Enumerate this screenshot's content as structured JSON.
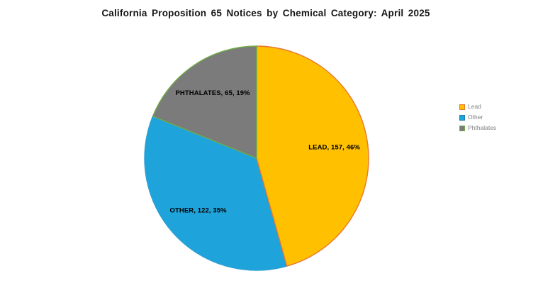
{
  "chart_data": {
    "type": "pie",
    "title": "California Proposition 65 Notices by Chemical Category: April 2025",
    "slices": [
      {
        "name": "Lead",
        "value": 157,
        "pct": 46,
        "label": "LEAD, 157, 46%",
        "fill": "#FFC000",
        "stroke": "#E8772E"
      },
      {
        "name": "Other",
        "value": 122,
        "pct": 35,
        "label": "OTHER, 122, 35%",
        "fill": "#1FA3DB",
        "stroke": "#2D9FD2"
      },
      {
        "name": "Phthalates",
        "value": 65,
        "pct": 19,
        "label": "PHTHALATES, 65, 19%",
        "fill": "#7B7B7B",
        "stroke": "#70AD47"
      }
    ],
    "legend": {
      "position": "right",
      "items": [
        {
          "label": "Lead",
          "fill": "#FFC000",
          "border": "#E8772E"
        },
        {
          "label": "Other",
          "fill": "#1FA3DB",
          "border": "#1C7FB0"
        },
        {
          "label": "Phthalates",
          "fill": "#7B7B7B",
          "border": "#70AD47"
        }
      ]
    },
    "colors": {
      "background": "#FFFFFF",
      "title_text": "#151515",
      "data_label_text": "#000000",
      "legend_text": "#7F7F7F"
    }
  }
}
